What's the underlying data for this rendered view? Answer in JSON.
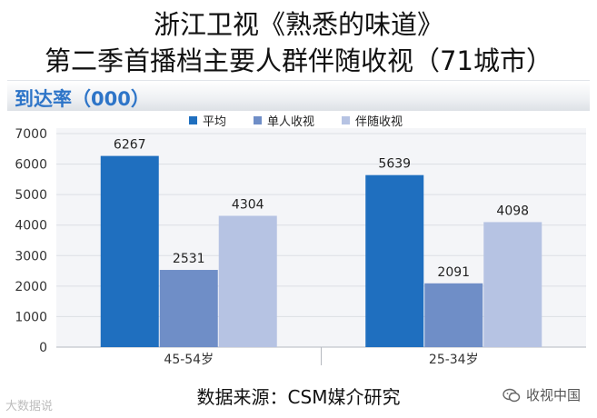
{
  "title_line1": "浙江卫视《熟悉的味道》",
  "title_line2": "第二季首播档主要人群伴随收视（71城市）",
  "metric_label": "到达率（000）",
  "source_text": "数据来源：CSM媒介研究",
  "watermark_left": "大数据说",
  "watermark_right": "收视中国",
  "chart_data": {
    "type": "bar",
    "title": "",
    "xlabel": "",
    "ylabel": "到达率（000）",
    "categories": [
      "45-54岁",
      "25-34岁"
    ],
    "series": [
      {
        "name": "平均",
        "values": [
          6267,
          5639
        ],
        "color": "#1f6fbf"
      },
      {
        "name": "单人收视",
        "values": [
          2531,
          2091
        ],
        "color": "#6f8ec7"
      },
      {
        "name": "伴随收视",
        "values": [
          4304,
          4098
        ],
        "color": "#b6c3e3"
      }
    ],
    "ylim": [
      0,
      7000
    ],
    "yticks": [
      0,
      1000,
      2000,
      3000,
      4000,
      5000,
      6000,
      7000
    ],
    "grid": true,
    "legend_position": "top"
  }
}
